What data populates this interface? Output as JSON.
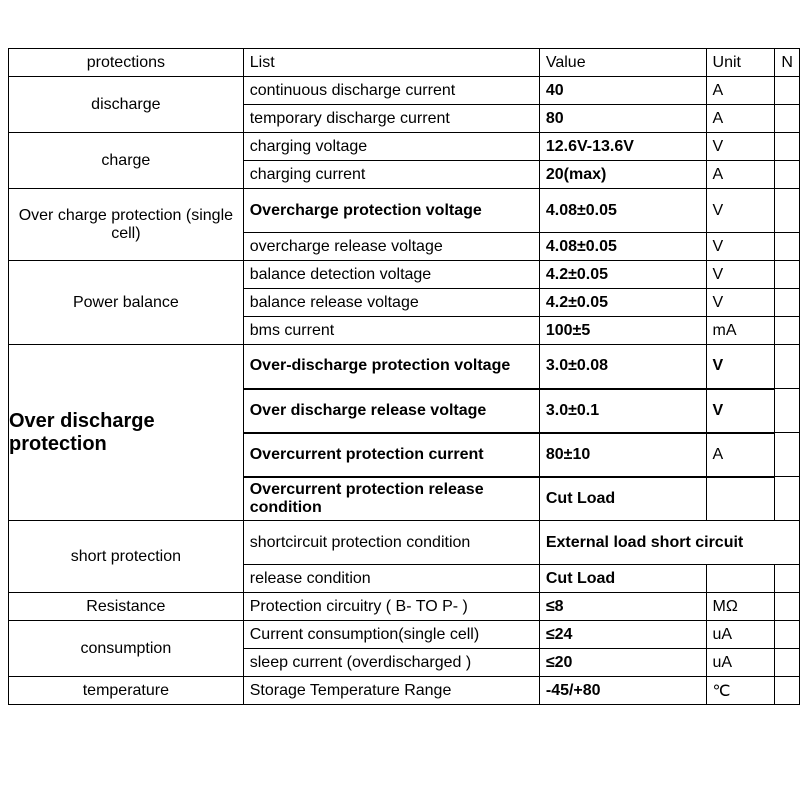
{
  "headers": {
    "protections": "protections",
    "list": "List",
    "value": "Value",
    "unit": "Unit",
    "n": "N"
  },
  "groups": [
    {
      "label": "discharge",
      "label_style": "normal",
      "rows": [
        {
          "list": "continuous discharge current",
          "value": "40",
          "unit": "A"
        },
        {
          "list": "temporary discharge current",
          "value": "80",
          "unit": "A"
        }
      ]
    },
    {
      "label": "charge",
      "label_style": "normal",
      "rows": [
        {
          "list": "charging voltage",
          "value": "12.6V-13.6V",
          "unit": "V"
        },
        {
          "list": "charging current",
          "value": "20(max)",
          "unit": "A"
        }
      ]
    },
    {
      "label": "Over charge protection (single cell)",
      "label_style": "normal",
      "rows": [
        {
          "list": "Overcharge protection voltage",
          "list_bold": true,
          "value": "4.08±0.05",
          "unit": "V",
          "tall": true
        },
        {
          "list": "overcharge release voltage",
          "value": "4.08±0.05",
          "unit": "V"
        }
      ]
    },
    {
      "label": "Power balance",
      "label_style": "normal",
      "rows": [
        {
          "list": "balance detection voltage",
          "value": "4.2±0.05",
          "unit": "V"
        },
        {
          "list": "balance release voltage",
          "value": "4.2±0.05",
          "unit": "V"
        },
        {
          "list": "bms current",
          "value": "100±5",
          "unit": "mA"
        }
      ]
    },
    {
      "label": "Over discharge protection",
      "label_style": "big",
      "rows": [
        {
          "list": "Over-discharge protection voltage",
          "list_bold": true,
          "value": "3.0±0.08",
          "unit": "V",
          "unit_bold": true,
          "tall": true
        },
        {
          "list": "Over discharge release voltage",
          "list_bold": true,
          "value": "3.0±0.1",
          "unit": "V",
          "unit_bold": true,
          "tall": true,
          "thick": true
        },
        {
          "list": "Overcurrent protection current",
          "list_bold": true,
          "value": "80±10",
          "unit": "A",
          "tall": true,
          "thick": true
        },
        {
          "list": "Overcurrent protection release condition",
          "list_bold": true,
          "value": "Cut Load",
          "unit": "",
          "tall": true,
          "thick": true
        }
      ]
    },
    {
      "label": "short  protection",
      "label_style": "normal",
      "rows": [
        {
          "list": "shortcircuit protection condition",
          "value_span": "External load short circuit",
          "tall": true
        },
        {
          "list": "release condition",
          "value": "Cut Load",
          "unit": ""
        }
      ]
    },
    {
      "label": "Resistance",
      "label_style": "normal",
      "rows": [
        {
          "list": "Protection circuitry ( B- TO P- )",
          "value": "≤8",
          "unit": "MΩ"
        }
      ]
    },
    {
      "label": "consumption",
      "label_style": "normal",
      "rows": [
        {
          "list": "Current consumption(single cell)",
          "value": "≤24",
          "unit": "uA"
        },
        {
          "list": "sleep current (overdischarged )",
          "value": "≤20",
          "unit": "uA"
        }
      ]
    },
    {
      "label": "temperature",
      "label_style": "normal",
      "rows": [
        {
          "list": "Storage Temperature Range",
          "value": "-45/+80",
          "unit": "℃"
        }
      ]
    }
  ]
}
